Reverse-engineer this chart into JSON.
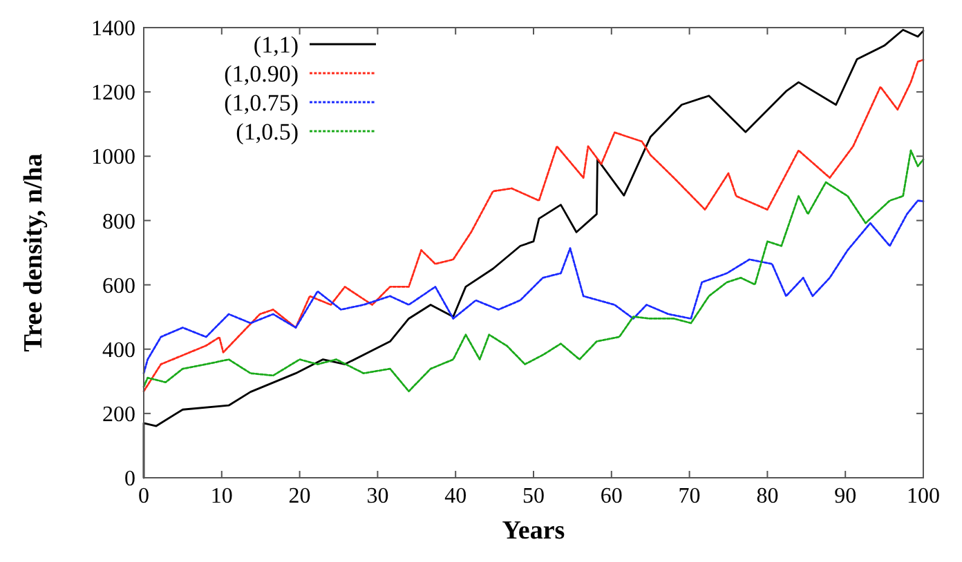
{
  "chart_data": {
    "type": "line",
    "xlabel": "Years",
    "ylabel": "Tree density, n/ha",
    "xlim": [
      0,
      100
    ],
    "ylim": [
      0,
      1400
    ],
    "xticks": [
      0,
      10,
      20,
      30,
      40,
      50,
      60,
      70,
      80,
      90,
      100
    ],
    "yticks": [
      0,
      200,
      400,
      600,
      800,
      1000,
      1200,
      1400
    ],
    "grid": false,
    "legend": "top left",
    "series": [
      {
        "name": "(1,1)",
        "color": "#000000",
        "line_style": "solid",
        "x": [
          0,
          0,
          1.6,
          5,
          10.9,
          13.7,
          19.5,
          23,
          25.8,
          31.6,
          34,
          36.8,
          39.7,
          41.3,
          44.8,
          48.3,
          50,
          50.7,
          53.5,
          55.5,
          58.1,
          58.2,
          61.6,
          65,
          69,
          72.5,
          77.2,
          82.4,
          84,
          88.8,
          91.5,
          95,
          97.4,
          99.3,
          100
        ],
        "values": [
          0,
          170,
          161,
          212,
          225,
          267,
          325,
          368,
          353,
          424,
          495,
          538,
          501,
          594,
          650,
          721,
          735,
          806,
          849,
          764,
          820,
          990,
          878,
          1060,
          1160,
          1188,
          1075,
          1202,
          1230,
          1160,
          1302,
          1344,
          1393,
          1372,
          1390
        ]
      },
      {
        "name": "(1,0.90)",
        "color": "#ff2a1a",
        "line_style": "dotted",
        "x": [
          0,
          2.2,
          8,
          9.7,
          10.2,
          14.9,
          16.6,
          19.5,
          21.3,
          24,
          25.8,
          29.3,
          31.6,
          34,
          35.6,
          37.4,
          39.7,
          42,
          44.8,
          47.2,
          50.7,
          53,
          56.4,
          57,
          58.7,
          60.4,
          63.9,
          65,
          68,
          72,
          75,
          76,
          80,
          84,
          88,
          91,
          94.5,
          96.7,
          98.4,
          99.3,
          100
        ],
        "values": [
          269,
          353,
          411,
          437,
          390,
          509,
          523,
          467,
          565,
          538,
          594,
          538,
          594,
          594,
          708,
          665,
          679,
          764,
          891,
          900,
          862,
          1031,
          933,
          1031,
          976,
          1074,
          1046,
          1004,
          933,
          834,
          947,
          876,
          834,
          1018,
          933,
          1031,
          1216,
          1145,
          1230,
          1294,
          1300
        ]
      },
      {
        "name": "(1,0.75)",
        "color": "#1a2aff",
        "line_style": "dotted",
        "x": [
          0,
          0.5,
          2.2,
          5,
          8,
          10.9,
          13.7,
          16.6,
          19.5,
          22.3,
          25.3,
          28.2,
          31.6,
          34,
          37.4,
          39.7,
          42.6,
          45.5,
          48.3,
          51.2,
          53.5,
          54.7,
          56.4,
          60.4,
          62.8,
          64.5,
          67.3,
          70.2,
          71.6,
          74.8,
          77.7,
          80.6,
          82.4,
          84.6,
          85.8,
          88,
          90.3,
          93.2,
          95.7,
          97.9,
          99.3,
          100
        ],
        "values": [
          325,
          368,
          438,
          467,
          438,
          509,
          481,
          509,
          467,
          580,
          523,
          538,
          565,
          538,
          594,
          495,
          552,
          523,
          552,
          622,
          636,
          714,
          565,
          538,
          495,
          538,
          509,
          495,
          608,
          636,
          679,
          665,
          565,
          622,
          565,
          622,
          708,
          792,
          721,
          820,
          862,
          860
        ]
      },
      {
        "name": "(1,0.5)",
        "color": "#1aaa1a",
        "line_style": "dotted",
        "x": [
          0,
          0.5,
          2.8,
          5,
          8,
          10.9,
          13.7,
          16.6,
          20,
          22.3,
          24.7,
          28.2,
          31.6,
          34,
          36.8,
          39.7,
          41.3,
          43.1,
          44.3,
          46.6,
          48.9,
          51.2,
          53.5,
          55.9,
          58.1,
          61,
          62.8,
          65,
          68,
          70.2,
          72.5,
          74.8,
          76.6,
          78.4,
          80,
          81.8,
          84,
          85.2,
          87.5,
          90.3,
          92.6,
          95.7,
          97.4,
          98.4,
          99.3,
          100
        ],
        "values": [
          283,
          311,
          297,
          339,
          353,
          368,
          325,
          318,
          368,
          353,
          368,
          325,
          339,
          269,
          339,
          368,
          445,
          368,
          445,
          410,
          353,
          382,
          417,
          368,
          424,
          438,
          501,
          495,
          495,
          481,
          565,
          608,
          622,
          601,
          735,
          721,
          876,
          820,
          919,
          876,
          792,
          862,
          876,
          1018,
          969,
          990
        ]
      }
    ]
  }
}
